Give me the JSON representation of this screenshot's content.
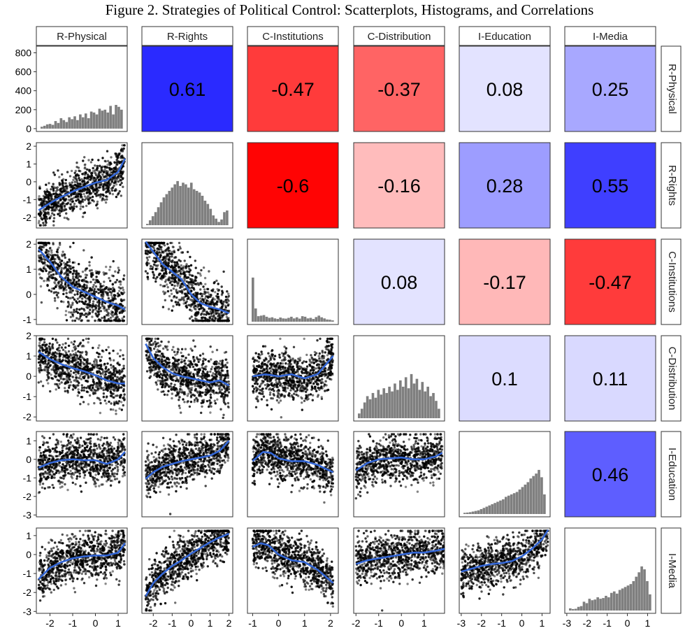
{
  "chart_data": {
    "type": "scatter-matrix",
    "title": "Figure 2. Strategies of Political Control: Scatterplots, Histograms, and Correlations",
    "variables": [
      "R-Physical",
      "R-Rights",
      "C-Institutions",
      "C-Distribution",
      "I-Education",
      "I-Media"
    ],
    "x_axes": [
      {
        "range": [
          -2.6,
          1.4
        ],
        "ticks": [
          -2,
          -1,
          0,
          1
        ]
      },
      {
        "range": [
          -2.6,
          2.2
        ],
        "ticks": [
          -2,
          -1,
          0,
          1,
          2
        ]
      },
      {
        "range": [
          -1.2,
          2.3
        ],
        "ticks": [
          -1,
          0,
          1,
          2
        ]
      },
      {
        "range": [
          -2.1,
          1.9
        ],
        "ticks": [
          -2,
          -1,
          0,
          1
        ]
      },
      {
        "range": [
          -3.1,
          1.4
        ],
        "ticks": [
          -3,
          -2,
          -1,
          0,
          1
        ]
      },
      {
        "range": [
          -3.1,
          1.4
        ],
        "ticks": [
          -3,
          -2,
          -1,
          0,
          1
        ]
      }
    ],
    "y_axes": [
      {
        "range": [
          -30,
          870
        ],
        "ticks": [
          0,
          200,
          400,
          600,
          800
        ]
      },
      {
        "range": [
          -2.6,
          2.2
        ],
        "ticks": [
          -2,
          -1,
          0,
          1,
          2
        ]
      },
      {
        "range": [
          -1.2,
          2.2
        ],
        "ticks": [
          -1,
          0,
          1,
          2
        ]
      },
      {
        "range": [
          -2.2,
          2.0
        ],
        "ticks": [
          -2,
          -1,
          0,
          1,
          2
        ]
      },
      {
        "range": [
          -3.1,
          1.5
        ],
        "ticks": [
          -3,
          -2,
          -1,
          0,
          1
        ]
      },
      {
        "range": [
          -3.1,
          1.4
        ],
        "ticks": [
          -3,
          -2,
          -1,
          0,
          1
        ]
      }
    ],
    "correlations": [
      {
        "row": 0,
        "col": 1,
        "value": "0.61",
        "r": 0.61
      },
      {
        "row": 0,
        "col": 2,
        "value": "-0.47",
        "r": -0.47
      },
      {
        "row": 0,
        "col": 3,
        "value": "-0.37",
        "r": -0.37
      },
      {
        "row": 0,
        "col": 4,
        "value": "0.08",
        "r": 0.08
      },
      {
        "row": 0,
        "col": 5,
        "value": "0.25",
        "r": 0.25
      },
      {
        "row": 1,
        "col": 2,
        "value": "-0.6",
        "r": -0.6
      },
      {
        "row": 1,
        "col": 3,
        "value": "-0.16",
        "r": -0.16
      },
      {
        "row": 1,
        "col": 4,
        "value": "0.28",
        "r": 0.28
      },
      {
        "row": 1,
        "col": 5,
        "value": "0.55",
        "r": 0.55
      },
      {
        "row": 2,
        "col": 3,
        "value": "0.08",
        "r": 0.08
      },
      {
        "row": 2,
        "col": 4,
        "value": "-0.17",
        "r": -0.17
      },
      {
        "row": 2,
        "col": 5,
        "value": "-0.47",
        "r": -0.47
      },
      {
        "row": 3,
        "col": 4,
        "value": "0.1",
        "r": 0.1
      },
      {
        "row": 3,
        "col": 5,
        "value": "0.11",
        "r": 0.11
      },
      {
        "row": 4,
        "col": 5,
        "value": "0.46",
        "r": 0.46
      }
    ],
    "histograms": [
      {
        "var": "R-Physical",
        "x_start": -2.4,
        "x_end": 1.3,
        "counts": [
          20,
          30,
          45,
          50,
          40,
          80,
          60,
          110,
          90,
          70,
          120,
          100,
          130,
          90,
          150,
          120,
          160,
          110,
          180,
          170,
          150,
          210,
          190,
          200,
          170,
          240,
          150,
          250,
          230,
          200
        ]
      },
      {
        "var": "R-Rights",
        "counts": [
          8,
          30,
          55,
          80,
          110,
          140,
          170,
          190,
          210,
          230,
          250,
          270,
          240,
          260,
          250,
          230,
          260,
          220,
          210,
          200,
          180,
          150,
          130,
          100,
          60,
          40,
          20,
          35,
          80,
          90
        ]
      },
      {
        "var": "C-Institutions",
        "counts": [
          400,
          120,
          50,
          55,
          60,
          45,
          35,
          40,
          30,
          25,
          38,
          30,
          28,
          35,
          45,
          30,
          40,
          28,
          50,
          45,
          30,
          35,
          25,
          42,
          55,
          40,
          30,
          20,
          18,
          12
        ]
      },
      {
        "var": "C-Distribution",
        "counts": [
          15,
          30,
          50,
          70,
          60,
          80,
          65,
          90,
          75,
          95,
          80,
          100,
          85,
          110,
          90,
          120,
          100,
          130,
          95,
          140,
          110,
          125,
          90,
          115,
          85,
          100,
          70,
          80,
          55,
          30
        ]
      },
      {
        "var": "I-Education",
        "counts": [
          10,
          12,
          15,
          20,
          25,
          30,
          40,
          50,
          60,
          70,
          80,
          90,
          100,
          110,
          120,
          140,
          150,
          160,
          170,
          180,
          200,
          220,
          240,
          260,
          290,
          310,
          330,
          360,
          300,
          160
        ]
      },
      {
        "var": "I-Media",
        "counts": [
          15,
          10,
          12,
          25,
          30,
          60,
          50,
          80,
          70,
          75,
          90,
          80,
          85,
          100,
          90,
          120,
          130,
          115,
          140,
          150,
          160,
          170,
          180,
          200,
          230,
          260,
          300,
          280,
          200,
          110
        ]
      }
    ],
    "smooth_curves": [
      {
        "row": 1,
        "col": 0,
        "x": [
          -2.5,
          -2,
          -1.5,
          -1,
          -0.5,
          0,
          0.5,
          1,
          1.3
        ],
        "y": [
          -1.6,
          -1.2,
          -0.85,
          -0.55,
          -0.3,
          -0.05,
          0.1,
          0.55,
          1.3
        ]
      },
      {
        "row": 2,
        "col": 0,
        "x": [
          -2.5,
          -2,
          -1.5,
          -1,
          -0.5,
          0,
          0.5,
          1,
          1.3
        ],
        "y": [
          1.8,
          1.3,
          0.7,
          0.3,
          0.1,
          -0.1,
          -0.3,
          -0.45,
          -0.6
        ]
      },
      {
        "row": 2,
        "col": 1,
        "x": [
          -2.4,
          -2,
          -1.5,
          -1,
          -0.5,
          0,
          0.5,
          1,
          1.5,
          2
        ],
        "y": [
          2.1,
          1.7,
          1.2,
          0.9,
          0.6,
          0.0,
          -0.35,
          -0.5,
          -0.6,
          -0.75
        ]
      },
      {
        "row": 3,
        "col": 0,
        "x": [
          -2.5,
          -2,
          -1.5,
          -1,
          -0.5,
          0,
          0.5,
          1,
          1.3
        ],
        "y": [
          1.2,
          0.85,
          0.6,
          0.4,
          0.25,
          0.05,
          -0.2,
          -0.35,
          -0.35
        ]
      },
      {
        "row": 3,
        "col": 1,
        "x": [
          -2.4,
          -2,
          -1.5,
          -1,
          -0.5,
          0,
          0.5,
          1,
          1.5,
          2
        ],
        "y": [
          1.6,
          0.9,
          0.45,
          0.15,
          0.0,
          -0.1,
          -0.2,
          -0.3,
          -0.2,
          -0.45
        ]
      },
      {
        "row": 3,
        "col": 2,
        "x": [
          -1,
          -0.5,
          0,
          0.5,
          1,
          1.5,
          2.1
        ],
        "y": [
          0.0,
          0.1,
          0.0,
          0.1,
          -0.1,
          0.1,
          1.0
        ]
      },
      {
        "row": 4,
        "col": 0,
        "x": [
          -2.5,
          -2,
          -1.5,
          -1,
          -0.5,
          0,
          0.5,
          1,
          1.3
        ],
        "y": [
          -0.45,
          -0.2,
          -0.05,
          0.0,
          -0.05,
          -0.05,
          -0.25,
          0.0,
          0.4
        ]
      },
      {
        "row": 4,
        "col": 1,
        "x": [
          -2.4,
          -2,
          -1.5,
          -1,
          -0.5,
          0,
          0.5,
          1,
          1.5,
          2
        ],
        "y": [
          -1.05,
          -0.7,
          -0.4,
          -0.25,
          -0.1,
          0.0,
          0.1,
          0.2,
          0.45,
          1.0
        ]
      },
      {
        "row": 4,
        "col": 2,
        "x": [
          -1,
          -0.6,
          -0.3,
          0,
          0.5,
          1,
          1.5,
          2.1
        ],
        "y": [
          -0.1,
          0.4,
          0.35,
          0.05,
          -0.1,
          -0.1,
          -0.3,
          -0.7
        ]
      },
      {
        "row": 4,
        "col": 3,
        "x": [
          -2,
          -1.5,
          -1,
          -0.5,
          0,
          0.5,
          1,
          1.5,
          1.8
        ],
        "y": [
          -0.6,
          -0.2,
          0.0,
          0.05,
          0.1,
          0.0,
          0.0,
          0.15,
          0.35
        ]
      },
      {
        "row": 5,
        "col": 0,
        "x": [
          -2.5,
          -2,
          -1.5,
          -1,
          -0.5,
          0,
          0.5,
          1,
          1.3
        ],
        "y": [
          -1.3,
          -0.7,
          -0.4,
          -0.2,
          -0.1,
          -0.05,
          -0.05,
          0.1,
          0.6
        ]
      },
      {
        "row": 5,
        "col": 1,
        "x": [
          -2.4,
          -2,
          -1.5,
          -1,
          -0.5,
          0,
          0.5,
          1,
          1.5,
          2
        ],
        "y": [
          -2.2,
          -1.5,
          -1.0,
          -0.6,
          -0.3,
          0.05,
          0.35,
          0.65,
          0.9,
          1.1
        ]
      },
      {
        "row": 5,
        "col": 2,
        "x": [
          -1,
          -0.7,
          -0.4,
          0,
          0.5,
          1,
          1.5,
          2.1
        ],
        "y": [
          0.4,
          0.6,
          0.5,
          0.0,
          -0.3,
          -0.4,
          -0.8,
          -1.5
        ]
      },
      {
        "row": 5,
        "col": 3,
        "x": [
          -2,
          -1.5,
          -1,
          -0.5,
          0,
          0.5,
          1,
          1.5,
          1.9
        ],
        "y": [
          -0.5,
          -0.3,
          -0.2,
          -0.1,
          0.0,
          0.1,
          0.1,
          0.2,
          0.3
        ]
      },
      {
        "row": 5,
        "col": 4,
        "x": [
          -3,
          -2.5,
          -2,
          -1.5,
          -1,
          -0.5,
          0,
          0.5,
          1,
          1.3
        ],
        "y": [
          -0.9,
          -0.75,
          -0.6,
          -0.5,
          -0.45,
          -0.35,
          -0.1,
          0.3,
          0.8,
          1.3
        ]
      }
    ],
    "colors": {
      "positive": "#2a2aff",
      "negative": "#ff0000",
      "smooth_line": "#3366d6",
      "histogram_fill": "#7f7f7f",
      "point": "#000000",
      "strip_fill": "#ffffff",
      "strip_border": "#333333"
    },
    "grid": false,
    "legend": "none"
  }
}
